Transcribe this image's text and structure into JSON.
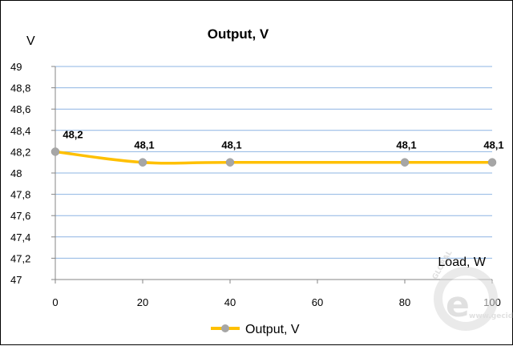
{
  "chart_data": {
    "type": "line",
    "title": "Output, V",
    "ylabel": "V",
    "xlabel": "Load, W",
    "x": [
      0,
      20,
      40,
      80,
      100
    ],
    "xticks": [
      0,
      20,
      40,
      60,
      80,
      100
    ],
    "yticks": [
      "47",
      "47,2",
      "47,4",
      "47,6",
      "47,8",
      "48",
      "48,2",
      "48,4",
      "48,6",
      "48,8",
      "49"
    ],
    "xlim": [
      0,
      100
    ],
    "ylim": [
      47,
      49
    ],
    "grid": "horizontal",
    "legend_position": "bottom",
    "series": [
      {
        "name": "Output, V",
        "values": [
          48.2,
          48.1,
          48.1,
          48.1,
          48.1
        ],
        "data_labels": [
          "48,2",
          "48,1",
          "48,1",
          "48,1",
          "48,1"
        ],
        "line_color": "#FFC000",
        "marker_color": "#A6A6A6"
      }
    ]
  },
  "watermark": {
    "text": "GLOBAL",
    "site": "www.gecid.com"
  }
}
